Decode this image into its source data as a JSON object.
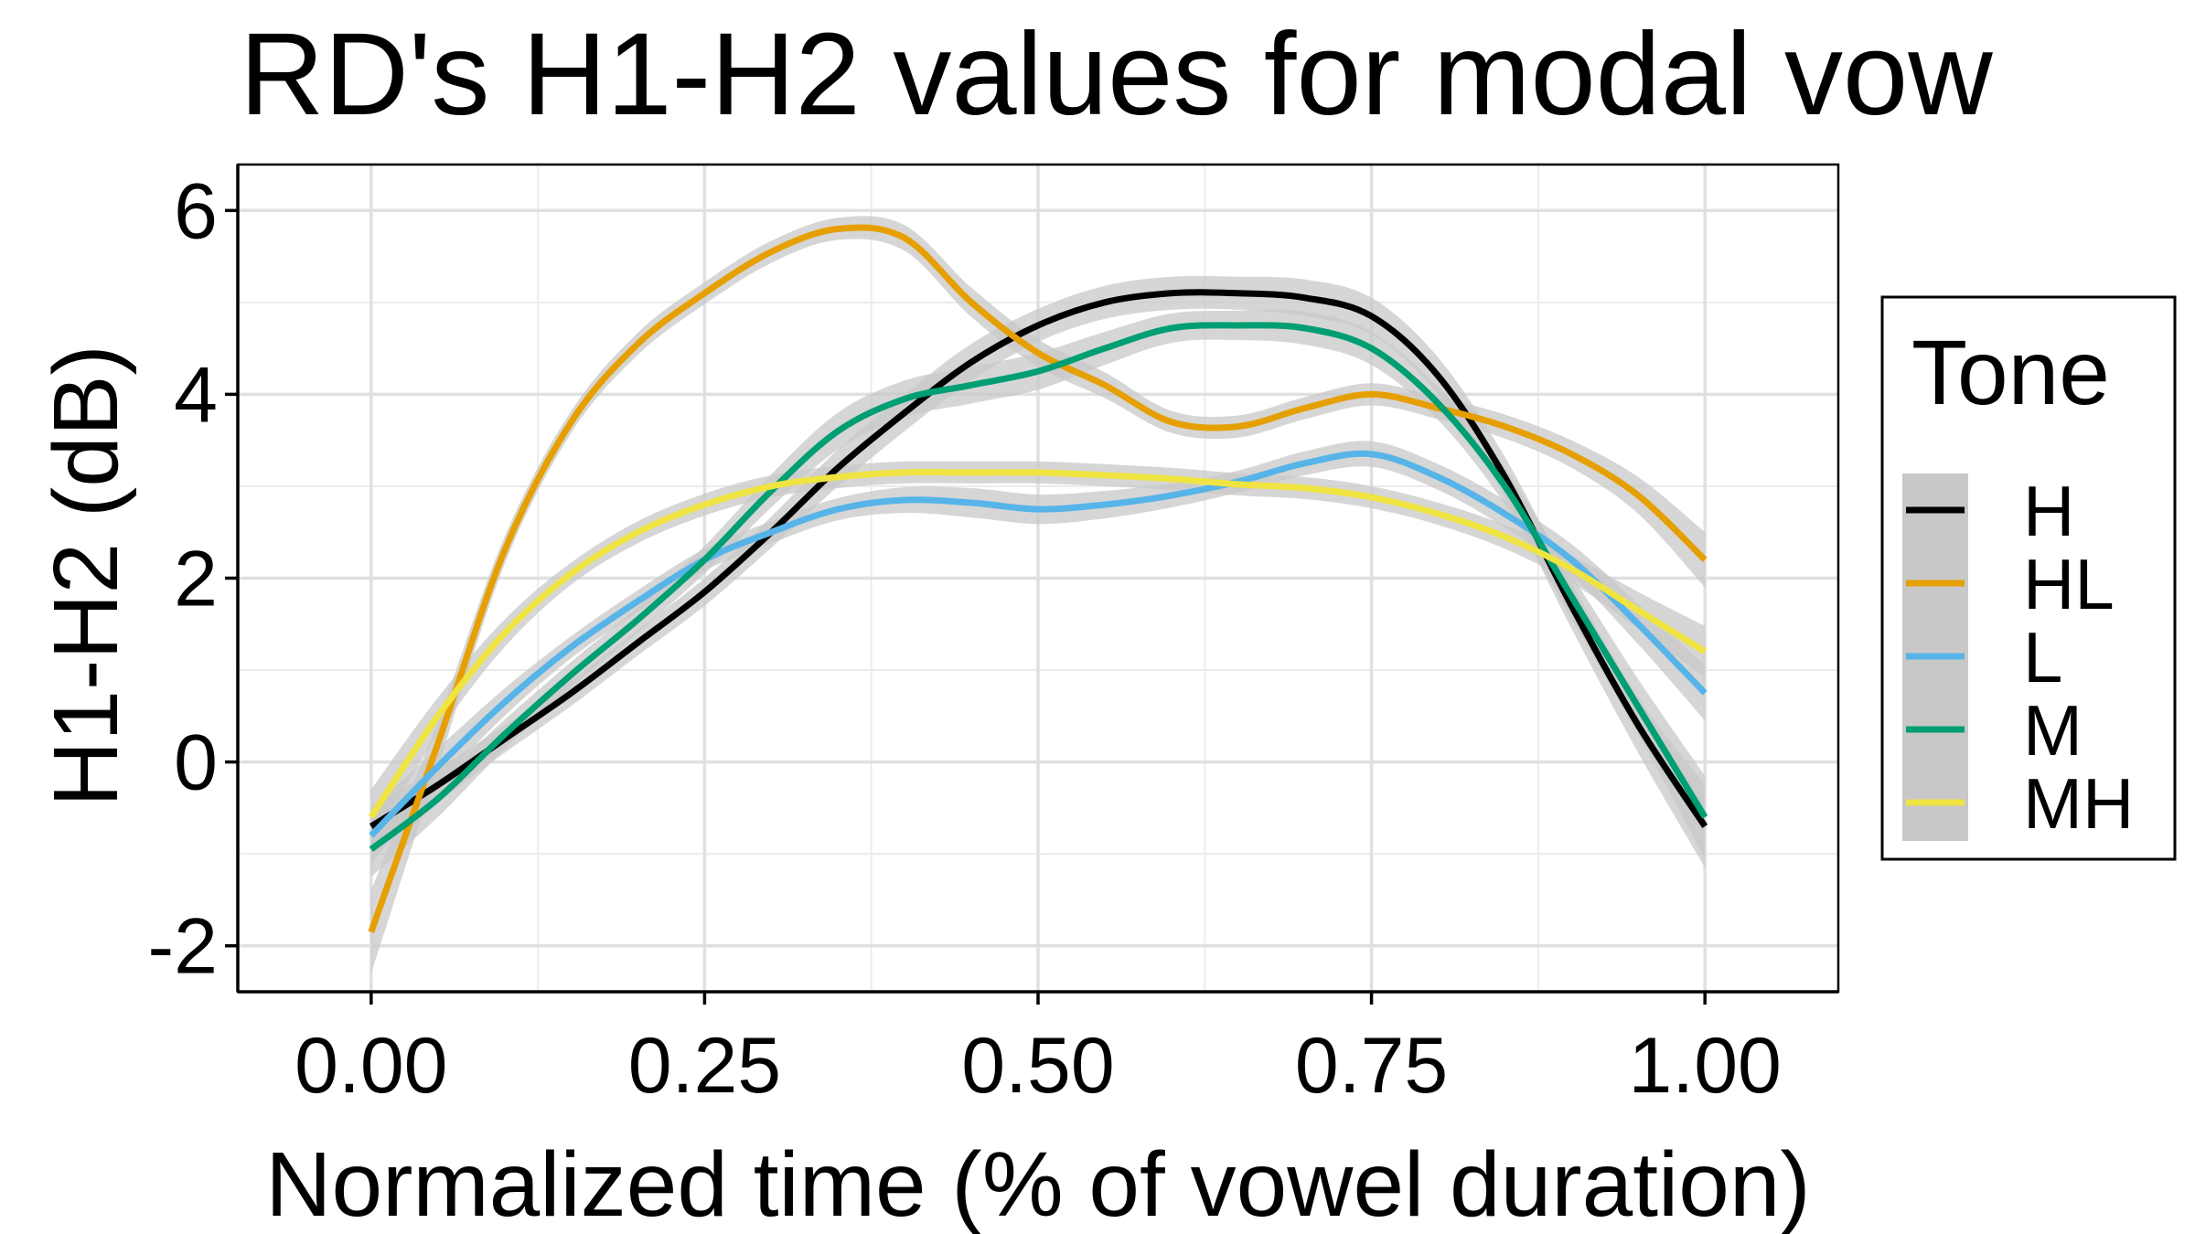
{
  "chart_data": {
    "type": "line",
    "title": "RD's H1-H2 values for modal vow",
    "xlabel": "Normalized time (% of vowel duration)",
    "ylabel": "H1-H2 (dB)",
    "xlim": [
      -0.1,
      1.1
    ],
    "ylim": [
      -2.5,
      6.5
    ],
    "x_ticks": [
      0.0,
      0.25,
      0.5,
      0.75,
      1.0
    ],
    "x_tick_labels": [
      "0.00",
      "0.25",
      "0.50",
      "0.75",
      "1.00"
    ],
    "y_ticks": [
      -2,
      0,
      2,
      4,
      6
    ],
    "y_tick_labels": [
      "-2",
      "0",
      "2",
      "4",
      "6"
    ],
    "grid": true,
    "confidence_band": true,
    "band_color": "#c8c8c8",
    "legend": {
      "title": "Tone",
      "placement": "right"
    },
    "series": [
      {
        "name": "H",
        "color": "#000000",
        "x": [
          0.0,
          0.05,
          0.1,
          0.15,
          0.2,
          0.25,
          0.3,
          0.35,
          0.4,
          0.45,
          0.5,
          0.55,
          0.6,
          0.65,
          0.7,
          0.75,
          0.8,
          0.85,
          0.9,
          0.95,
          1.0
        ],
        "y": [
          -0.7,
          -0.25,
          0.25,
          0.75,
          1.3,
          1.85,
          2.5,
          3.2,
          3.8,
          4.35,
          4.75,
          5.0,
          5.1,
          5.1,
          5.05,
          4.85,
          4.2,
          3.1,
          1.7,
          0.4,
          -0.7
        ],
        "band": [
          0.22,
          0.18,
          0.15,
          0.14,
          0.14,
          0.15,
          0.17,
          0.2,
          0.2,
          0.2,
          0.18,
          0.18,
          0.18,
          0.18,
          0.2,
          0.2,
          0.2,
          0.22,
          0.25,
          0.3,
          0.45
        ]
      },
      {
        "name": "HL",
        "color": "#E69F00",
        "x": [
          0.0,
          0.05,
          0.1,
          0.15,
          0.2,
          0.25,
          0.3,
          0.35,
          0.4,
          0.45,
          0.5,
          0.55,
          0.6,
          0.65,
          0.7,
          0.75,
          0.8,
          0.85,
          0.9,
          0.95,
          1.0
        ],
        "y": [
          -1.85,
          0.2,
          2.3,
          3.7,
          4.55,
          5.1,
          5.55,
          5.8,
          5.7,
          5.0,
          4.45,
          4.1,
          3.7,
          3.65,
          3.85,
          4.0,
          3.85,
          3.65,
          3.35,
          2.9,
          2.2
        ],
        "band": [
          0.45,
          0.25,
          0.15,
          0.12,
          0.12,
          0.12,
          0.12,
          0.12,
          0.14,
          0.16,
          0.15,
          0.14,
          0.12,
          0.12,
          0.12,
          0.12,
          0.12,
          0.13,
          0.15,
          0.2,
          0.3
        ]
      },
      {
        "name": "L",
        "color": "#56B4E9",
        "x": [
          0.0,
          0.05,
          0.1,
          0.15,
          0.2,
          0.25,
          0.3,
          0.35,
          0.4,
          0.45,
          0.5,
          0.55,
          0.6,
          0.65,
          0.7,
          0.75,
          0.8,
          0.85,
          0.9,
          0.95,
          1.0
        ],
        "y": [
          -0.8,
          -0.05,
          0.65,
          1.25,
          1.75,
          2.2,
          2.5,
          2.75,
          2.85,
          2.82,
          2.75,
          2.8,
          2.9,
          3.05,
          3.25,
          3.35,
          3.1,
          2.7,
          2.2,
          1.5,
          0.75
        ],
        "band": [
          0.3,
          0.2,
          0.15,
          0.12,
          0.12,
          0.12,
          0.12,
          0.12,
          0.14,
          0.16,
          0.16,
          0.15,
          0.13,
          0.12,
          0.13,
          0.14,
          0.14,
          0.15,
          0.17,
          0.22,
          0.3
        ]
      },
      {
        "name": "M",
        "color": "#009E73",
        "x": [
          0.0,
          0.05,
          0.1,
          0.15,
          0.2,
          0.25,
          0.3,
          0.35,
          0.4,
          0.45,
          0.5,
          0.55,
          0.6,
          0.65,
          0.7,
          0.75,
          0.8,
          0.85,
          0.9,
          0.95,
          1.0
        ],
        "y": [
          -0.95,
          -0.4,
          0.3,
          0.95,
          1.55,
          2.2,
          2.95,
          3.6,
          3.95,
          4.1,
          4.25,
          4.5,
          4.72,
          4.75,
          4.72,
          4.5,
          3.9,
          3.0,
          1.8,
          0.6,
          -0.6
        ],
        "band": [
          0.3,
          0.2,
          0.16,
          0.14,
          0.14,
          0.15,
          0.18,
          0.2,
          0.2,
          0.2,
          0.2,
          0.18,
          0.16,
          0.16,
          0.18,
          0.18,
          0.18,
          0.2,
          0.24,
          0.3,
          0.45
        ]
      },
      {
        "name": "MH",
        "color": "#F0E442",
        "x": [
          0.0,
          0.05,
          0.1,
          0.15,
          0.2,
          0.25,
          0.3,
          0.35,
          0.4,
          0.45,
          0.5,
          0.55,
          0.6,
          0.65,
          0.7,
          0.75,
          0.8,
          0.85,
          0.9,
          0.95,
          1.0
        ],
        "y": [
          -0.6,
          0.5,
          1.4,
          2.05,
          2.5,
          2.8,
          3.0,
          3.1,
          3.15,
          3.15,
          3.15,
          3.12,
          3.08,
          3.02,
          2.98,
          2.88,
          2.7,
          2.45,
          2.1,
          1.65,
          1.2
        ],
        "band": [
          0.3,
          0.2,
          0.15,
          0.12,
          0.12,
          0.12,
          0.12,
          0.12,
          0.12,
          0.12,
          0.12,
          0.12,
          0.12,
          0.12,
          0.12,
          0.12,
          0.12,
          0.13,
          0.15,
          0.2,
          0.28
        ]
      }
    ]
  }
}
